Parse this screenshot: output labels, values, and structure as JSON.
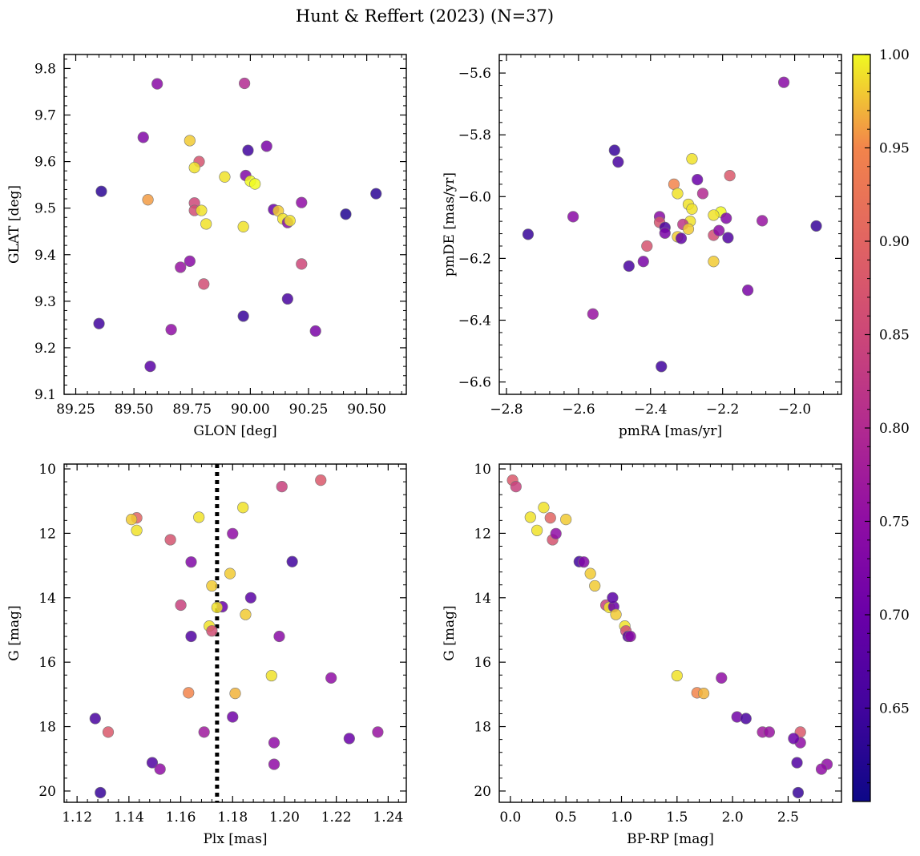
{
  "figure": {
    "title": "Hunt & Reffert (2023) (N=37)"
  },
  "colorbar": {
    "ticks": [
      "0.65",
      "0.70",
      "0.75",
      "0.80",
      "0.85",
      "0.90",
      "0.95",
      "1.00"
    ],
    "range": [
      0.6,
      1.0
    ],
    "colormap": "plasma"
  },
  "chart_data": [
    {
      "id": "sky",
      "type": "scatter",
      "xlabel": "GLON [deg]",
      "ylabel": "GLAT [deg]",
      "xlim": [
        89.2,
        90.67
      ],
      "ylim": [
        9.1,
        9.83
      ],
      "xticks": [
        89.25,
        89.5,
        89.75,
        90.0,
        90.25,
        90.5
      ],
      "xtick_labels": [
        "89.25",
        "89.50",
        "89.75",
        "90.00",
        "90.25",
        "90.50"
      ],
      "yticks": [
        9.1,
        9.2,
        9.3,
        9.4,
        9.5,
        9.6,
        9.7,
        9.8
      ],
      "ytick_labels": [
        "9.1",
        "9.2",
        "9.3",
        "9.4",
        "9.5",
        "9.6",
        "9.7",
        "9.8"
      ],
      "points": [
        [
          89.6,
          9.767,
          0.74
        ],
        [
          89.975,
          9.768,
          0.8
        ],
        [
          89.54,
          9.652,
          0.73
        ],
        [
          89.74,
          9.645,
          0.98
        ],
        [
          89.78,
          9.6,
          0.87
        ],
        [
          89.76,
          9.587,
          0.99
        ],
        [
          89.89,
          9.567,
          0.99
        ],
        [
          89.99,
          9.624,
          0.65
        ],
        [
          90.07,
          9.633,
          0.72
        ],
        [
          89.98,
          9.57,
          0.73
        ],
        [
          90.0,
          9.558,
          1.0
        ],
        [
          90.02,
          9.552,
          1.0
        ],
        [
          89.36,
          9.536,
          0.63
        ],
        [
          89.56,
          9.518,
          0.96
        ],
        [
          89.76,
          9.511,
          0.85
        ],
        [
          89.76,
          9.495,
          0.86
        ],
        [
          89.79,
          9.495,
          0.99
        ],
        [
          90.1,
          9.497,
          0.7
        ],
        [
          90.12,
          9.494,
          0.98
        ],
        [
          90.14,
          9.477,
          0.99
        ],
        [
          90.16,
          9.469,
          0.74
        ],
        [
          90.22,
          9.512,
          0.75
        ],
        [
          90.41,
          9.487,
          0.62
        ],
        [
          90.54,
          9.531,
          0.63
        ],
        [
          89.81,
          9.466,
          0.99
        ],
        [
          89.97,
          9.46,
          0.99
        ],
        [
          89.74,
          9.386,
          0.74
        ],
        [
          89.7,
          9.373,
          0.76
        ],
        [
          89.8,
          9.337,
          0.86
        ],
        [
          90.22,
          9.38,
          0.85
        ],
        [
          90.16,
          9.305,
          0.66
        ],
        [
          89.35,
          9.252,
          0.65
        ],
        [
          89.97,
          9.268,
          0.64
        ],
        [
          89.66,
          9.239,
          0.75
        ],
        [
          90.28,
          9.236,
          0.72
        ],
        [
          89.57,
          9.16,
          0.68
        ],
        [
          90.17,
          9.473,
          0.99
        ]
      ]
    },
    {
      "id": "pm",
      "type": "scatter",
      "xlabel": "pmRA [mas/yr]",
      "ylabel": "pmDE [mas/yr]",
      "xlim": [
        -2.82,
        -1.87
      ],
      "ylim": [
        -6.64,
        -5.54
      ],
      "xticks": [
        -2.8,
        -2.6,
        -2.4,
        -2.2,
        -2.0
      ],
      "xtick_labels": [
        "−2.8",
        "−2.6",
        "−2.4",
        "−2.2",
        "−2.0"
      ],
      "yticks": [
        -6.6,
        -6.4,
        -6.2,
        -6.0,
        -5.8,
        -5.6
      ],
      "ytick_labels": [
        "−6.6",
        "−6.4",
        "−6.2",
        "−6.0",
        "−5.8",
        "−5.6"
      ],
      "points": [
        [
          -2.03,
          -5.63,
          0.74
        ],
        [
          -2.5,
          -5.85,
          0.64
        ],
        [
          -2.49,
          -5.888,
          0.66
        ],
        [
          -2.285,
          -5.878,
          0.99
        ],
        [
          -2.18,
          -5.932,
          0.88
        ],
        [
          -2.27,
          -5.945,
          0.7
        ],
        [
          -2.335,
          -5.96,
          0.95
        ],
        [
          -2.325,
          -5.99,
          0.99
        ],
        [
          -2.255,
          -5.99,
          0.8
        ],
        [
          -2.295,
          -6.025,
          0.99
        ],
        [
          -2.285,
          -6.04,
          0.99
        ],
        [
          -2.205,
          -6.05,
          1.0
        ],
        [
          -2.225,
          -6.06,
          0.99
        ],
        [
          -2.615,
          -6.065,
          0.74
        ],
        [
          -2.375,
          -6.065,
          0.74
        ],
        [
          -2.19,
          -6.07,
          0.73
        ],
        [
          -2.09,
          -6.078,
          0.76
        ],
        [
          -2.29,
          -6.08,
          0.99
        ],
        [
          -2.375,
          -6.083,
          0.87
        ],
        [
          -2.31,
          -6.09,
          0.82
        ],
        [
          -2.295,
          -6.105,
          0.98
        ],
        [
          -2.36,
          -6.1,
          0.66
        ],
        [
          -2.36,
          -6.118,
          0.72
        ],
        [
          -1.94,
          -6.095,
          0.64
        ],
        [
          -2.74,
          -6.122,
          0.64
        ],
        [
          -2.225,
          -6.125,
          0.86
        ],
        [
          -2.325,
          -6.13,
          0.98
        ],
        [
          -2.185,
          -6.133,
          0.67
        ],
        [
          -2.315,
          -6.135,
          0.69
        ],
        [
          -2.41,
          -6.16,
          0.87
        ],
        [
          -2.225,
          -6.21,
          0.98
        ],
        [
          -2.42,
          -6.21,
          0.72
        ],
        [
          -2.46,
          -6.225,
          0.66
        ],
        [
          -2.13,
          -6.303,
          0.72
        ],
        [
          -2.56,
          -6.38,
          0.76
        ],
        [
          -2.37,
          -6.55,
          0.65
        ],
        [
          -2.21,
          -6.11,
          0.74
        ]
      ]
    },
    {
      "id": "plx",
      "type": "scatter",
      "xlabel": "Plx [mas]",
      "ylabel": "G [mag]",
      "xlim": [
        1.115,
        1.247
      ],
      "ylim": [
        20.35,
        9.85
      ],
      "inverted_y": true,
      "vline": 1.174,
      "xticks": [
        1.12,
        1.14,
        1.16,
        1.18,
        1.2,
        1.22,
        1.24
      ],
      "xtick_labels": [
        "1.12",
        "1.14",
        "1.16",
        "1.18",
        "1.20",
        "1.22",
        "1.24"
      ],
      "yticks": [
        10,
        12,
        14,
        16,
        18,
        20
      ],
      "ytick_labels": [
        "10",
        "12",
        "14",
        "16",
        "18",
        "20"
      ],
      "points": [
        [
          1.214,
          10.35,
          0.88
        ],
        [
          1.199,
          10.55,
          0.84
        ],
        [
          1.143,
          11.52,
          0.9
        ],
        [
          1.141,
          11.57,
          0.98
        ],
        [
          1.167,
          11.5,
          0.99
        ],
        [
          1.184,
          11.2,
          0.99
        ],
        [
          1.143,
          11.91,
          0.99
        ],
        [
          1.156,
          12.2,
          0.87
        ],
        [
          1.18,
          12.01,
          0.75
        ],
        [
          1.203,
          12.88,
          0.65
        ],
        [
          1.164,
          12.89,
          0.73
        ],
        [
          1.179,
          13.25,
          0.98
        ],
        [
          1.172,
          13.63,
          0.98
        ],
        [
          1.176,
          14.28,
          0.7
        ],
        [
          1.187,
          14.0,
          0.68
        ],
        [
          1.16,
          14.23,
          0.84
        ],
        [
          1.174,
          14.3,
          0.99
        ],
        [
          1.185,
          14.52,
          0.98
        ],
        [
          1.171,
          14.88,
          0.99
        ],
        [
          1.172,
          15.03,
          0.86
        ],
        [
          1.164,
          15.2,
          0.67
        ],
        [
          1.198,
          15.2,
          0.74
        ],
        [
          1.195,
          16.42,
          0.99
        ],
        [
          1.218,
          16.49,
          0.75
        ],
        [
          1.163,
          16.95,
          0.95
        ],
        [
          1.181,
          16.97,
          0.97
        ],
        [
          1.127,
          17.75,
          0.66
        ],
        [
          1.18,
          17.7,
          0.71
        ],
        [
          1.132,
          18.17,
          0.88
        ],
        [
          1.169,
          18.17,
          0.77
        ],
        [
          1.236,
          18.17,
          0.76
        ],
        [
          1.196,
          18.5,
          0.75
        ],
        [
          1.225,
          18.37,
          0.7
        ],
        [
          1.149,
          19.12,
          0.67
        ],
        [
          1.152,
          19.32,
          0.75
        ],
        [
          1.196,
          19.17,
          0.75
        ],
        [
          1.129,
          20.05,
          0.64
        ]
      ]
    },
    {
      "id": "cmd",
      "type": "scatter",
      "xlabel": "BP-RP [mag]",
      "ylabel": "G [mag]",
      "xlim": [
        -0.1,
        2.98
      ],
      "ylim": [
        20.35,
        9.85
      ],
      "inverted_y": true,
      "xticks": [
        0.0,
        0.5,
        1.0,
        1.5,
        2.0,
        2.5
      ],
      "xtick_labels": [
        "0.0",
        "0.5",
        "1.0",
        "1.5",
        "2.0",
        "2.5"
      ],
      "yticks": [
        10,
        12,
        14,
        16,
        18,
        20
      ],
      "ytick_labels": [
        "10",
        "12",
        "14",
        "16",
        "18",
        "20"
      ],
      "points": [
        [
          0.02,
          10.35,
          0.88
        ],
        [
          0.05,
          10.55,
          0.84
        ],
        [
          0.18,
          11.5,
          0.99
        ],
        [
          0.3,
          11.2,
          0.99
        ],
        [
          0.36,
          11.52,
          0.9
        ],
        [
          0.5,
          11.57,
          0.98
        ],
        [
          0.24,
          11.91,
          0.99
        ],
        [
          0.38,
          12.2,
          0.87
        ],
        [
          0.41,
          12.01,
          0.75
        ],
        [
          0.62,
          12.88,
          0.65
        ],
        [
          0.66,
          12.89,
          0.73
        ],
        [
          0.72,
          13.25,
          0.98
        ],
        [
          0.76,
          13.63,
          0.98
        ],
        [
          0.86,
          14.23,
          0.84
        ],
        [
          0.89,
          14.3,
          0.99
        ],
        [
          0.93,
          14.28,
          0.7
        ],
        [
          0.92,
          14.0,
          0.68
        ],
        [
          0.95,
          14.52,
          0.98
        ],
        [
          1.03,
          14.88,
          0.99
        ],
        [
          1.04,
          15.03,
          0.86
        ],
        [
          1.06,
          15.2,
          0.67
        ],
        [
          1.08,
          15.2,
          0.74
        ],
        [
          1.5,
          16.42,
          0.99
        ],
        [
          1.9,
          16.49,
          0.75
        ],
        [
          1.68,
          16.95,
          0.95
        ],
        [
          1.74,
          16.97,
          0.97
        ],
        [
          2.04,
          17.7,
          0.71
        ],
        [
          2.12,
          17.75,
          0.66
        ],
        [
          2.27,
          18.17,
          0.77
        ],
        [
          2.33,
          18.17,
          0.76
        ],
        [
          2.61,
          18.17,
          0.88
        ],
        [
          2.61,
          18.5,
          0.75
        ],
        [
          2.55,
          18.37,
          0.7
        ],
        [
          2.58,
          19.12,
          0.67
        ],
        [
          2.85,
          19.17,
          0.75
        ],
        [
          2.8,
          19.32,
          0.75
        ],
        [
          2.59,
          20.05,
          0.64
        ]
      ]
    }
  ]
}
